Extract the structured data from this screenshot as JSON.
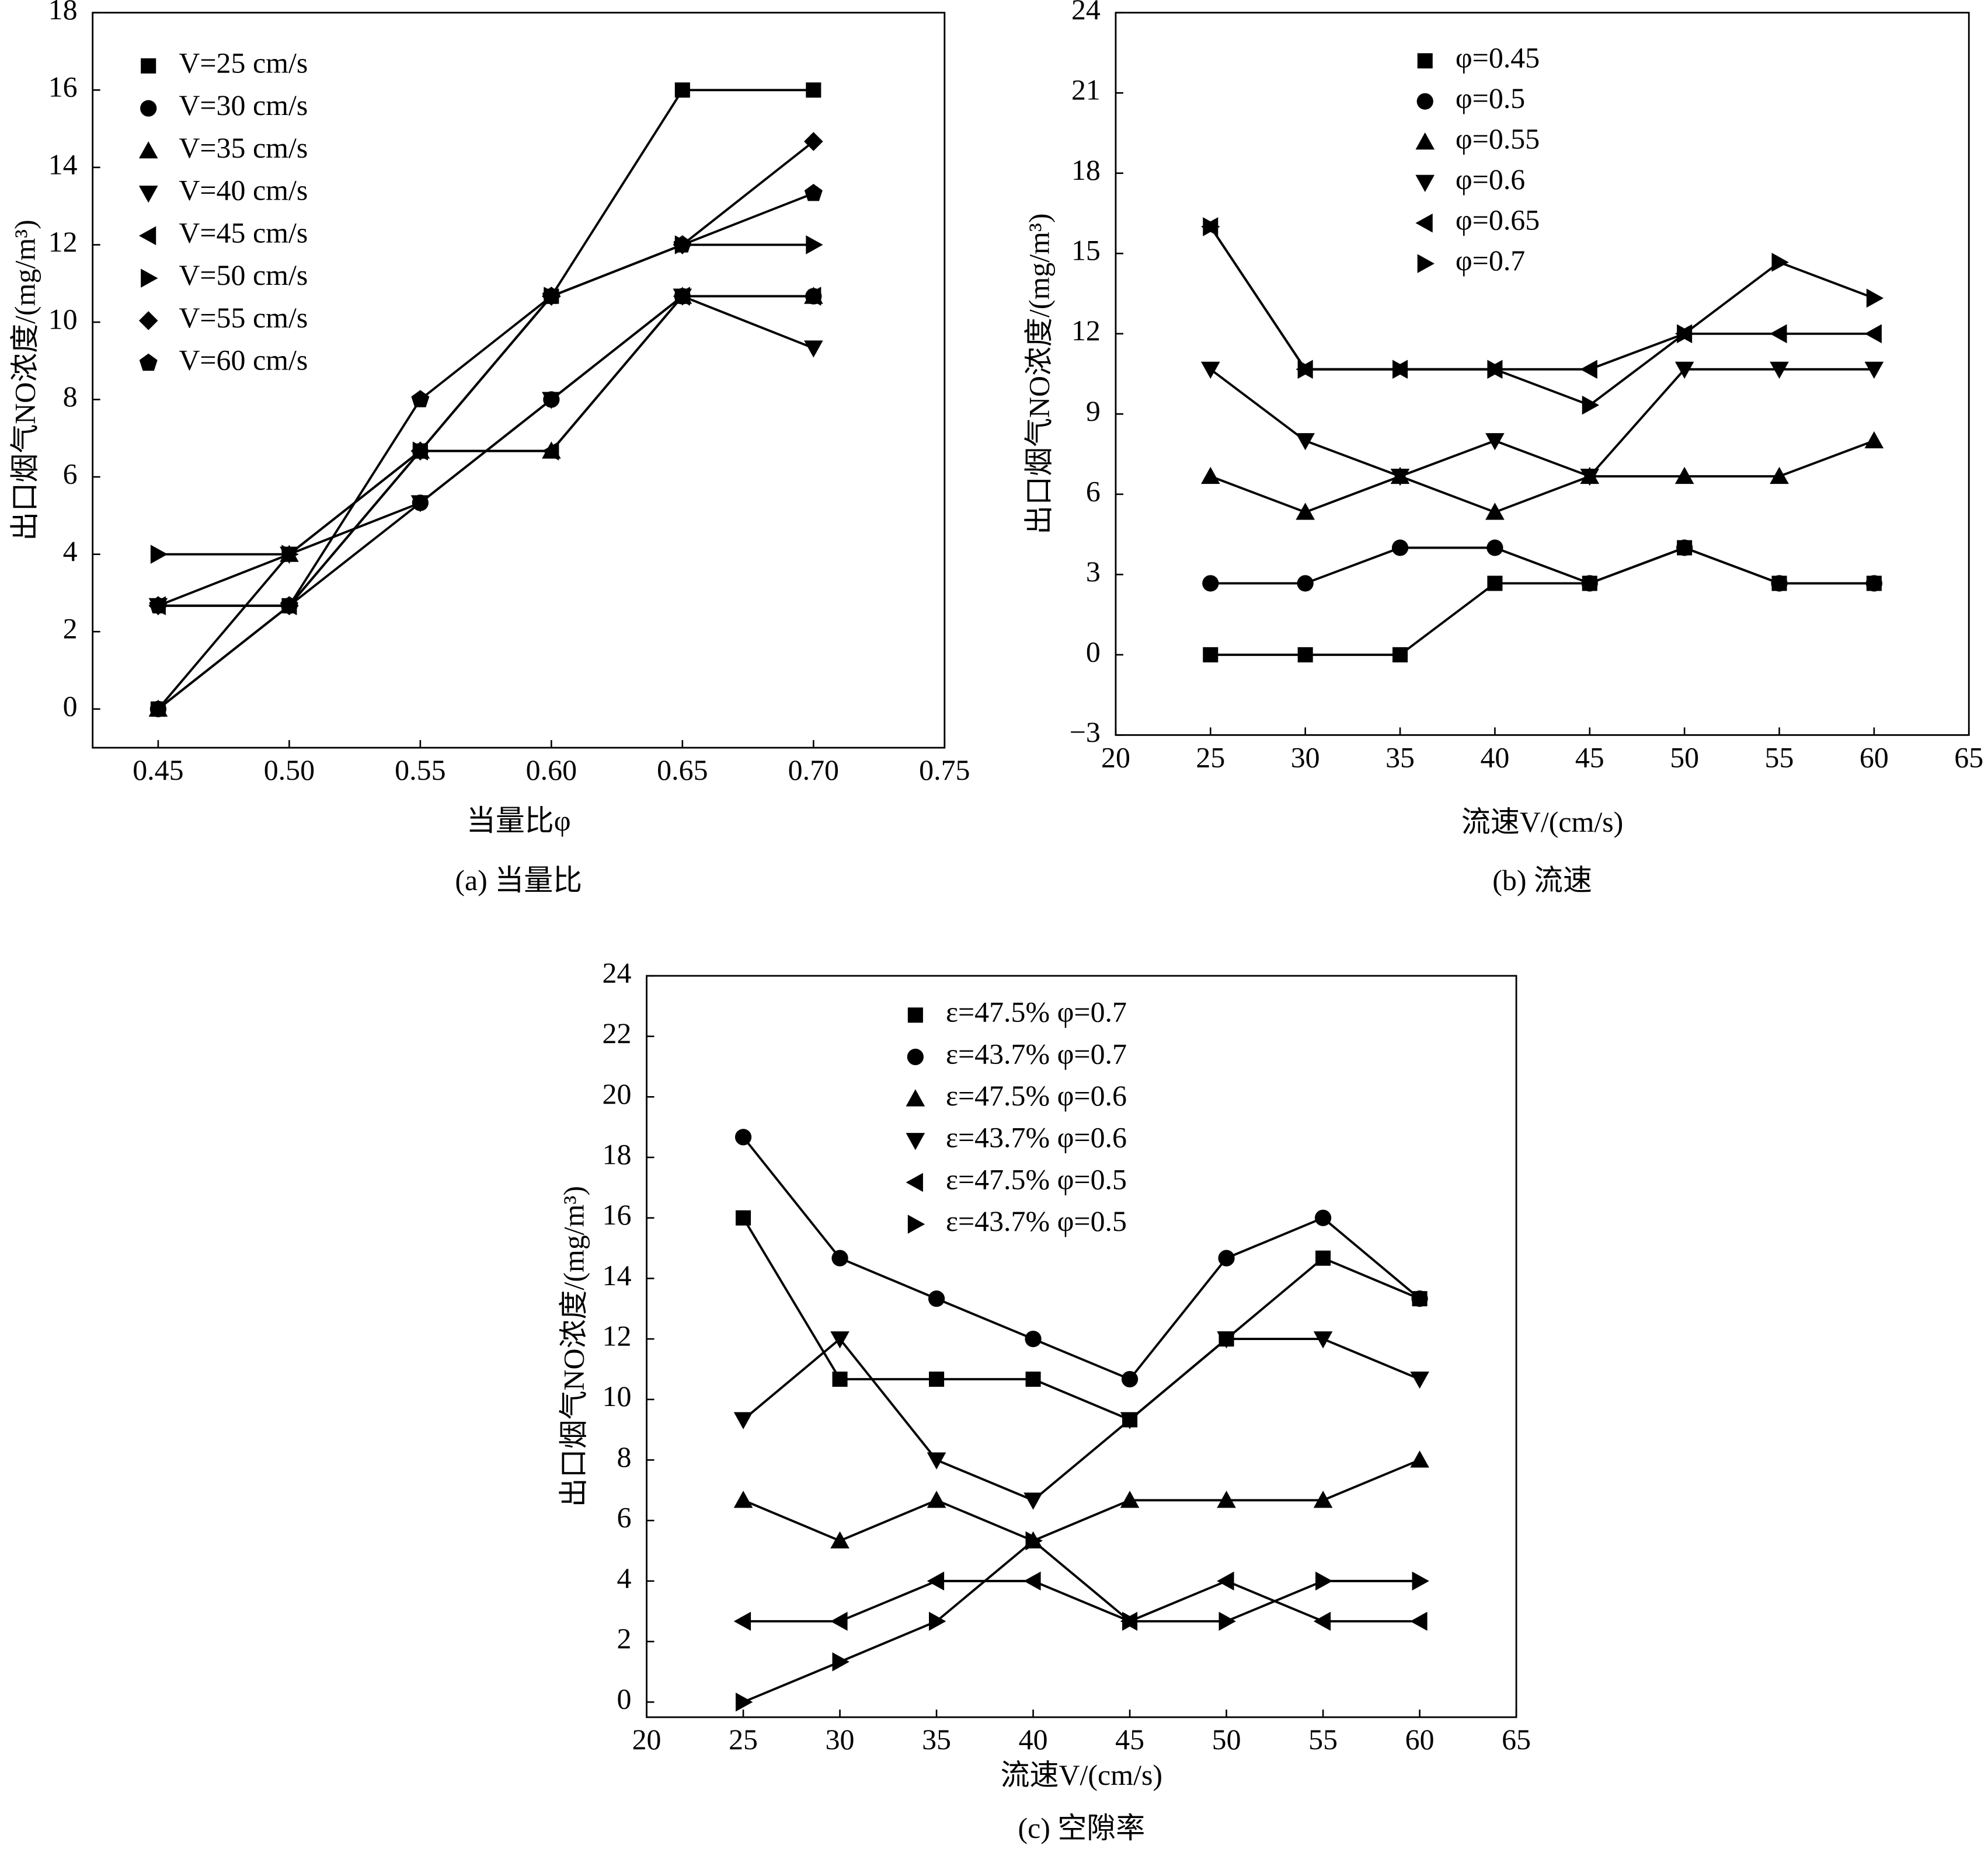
{
  "chart_data": [
    {
      "type": "line",
      "caption": "(a) 当量比",
      "xlabel": "当量比φ",
      "ylabel": "出口烟气NO浓度/(mg/m³)",
      "x": [
        0.45,
        0.5,
        0.55,
        0.6,
        0.65,
        0.7
      ],
      "xlim": [
        0.425,
        0.75
      ],
      "xticks": [
        {
          "value": 0.45,
          "label": "0.45"
        },
        {
          "value": 0.5,
          "label": "0.50"
        },
        {
          "value": 0.55,
          "label": "0.55"
        },
        {
          "value": 0.6,
          "label": "0.60"
        },
        {
          "value": 0.65,
          "label": "0.65"
        },
        {
          "value": 0.7,
          "label": "0.70"
        },
        {
          "value": 0.75,
          "label": "0.75"
        }
      ],
      "ylim": [
        -1,
        18
      ],
      "yticks": [
        0,
        2,
        4,
        6,
        8,
        10,
        12,
        14,
        16,
        18
      ],
      "series": [
        {
          "name": "V=25 cm/s",
          "color": "#000000",
          "marker": "square",
          "values": [
            0,
            2.67,
            6.67,
            10.67,
            16,
            16
          ]
        },
        {
          "name": "V=30 cm/s",
          "color": "#000000",
          "marker": "circle",
          "values": [
            0,
            2.67,
            5.33,
            8,
            10.67,
            10.67
          ]
        },
        {
          "name": "V=35 cm/s",
          "color": "#000000",
          "marker": "up",
          "values": [
            0,
            4,
            6.67,
            6.67,
            10.67,
            10.67
          ]
        },
        {
          "name": "V=40 cm/s",
          "color": "#000000",
          "marker": "down",
          "values": [
            2.67,
            4,
            5.33,
            8,
            10.67,
            9.33
          ]
        },
        {
          "name": "V=45 cm/s",
          "color": "#000000",
          "marker": "left",
          "values": [
            2.67,
            2.67,
            6.67,
            6.67,
            10.67,
            10.67
          ]
        },
        {
          "name": "V=50 cm/s",
          "color": "#000000",
          "marker": "right",
          "values": [
            4,
            4,
            6.67,
            10.67,
            12,
            12
          ]
        },
        {
          "name": "V=55 cm/s",
          "color": "#000000",
          "marker": "diamond",
          "values": [
            2.67,
            2.67,
            6.67,
            10.67,
            12,
            14.67
          ]
        },
        {
          "name": "V=60 cm/s",
          "color": "#000000",
          "marker": "pentagon",
          "values": [
            2.67,
            2.67,
            8,
            10.67,
            12,
            13.33
          ]
        }
      ]
    },
    {
      "type": "line",
      "caption": "(b) 流速",
      "xlabel": "流速V/(cm/s)",
      "ylabel": "出口烟气NO浓度/(mg/m³)",
      "x": [
        25,
        30,
        35,
        40,
        45,
        50,
        55,
        60
      ],
      "xlim": [
        20,
        65
      ],
      "xticks": [
        20,
        25,
        30,
        35,
        40,
        45,
        50,
        55,
        60,
        65
      ],
      "ylim": [
        -3,
        24
      ],
      "yticks": [
        {
          "value": -3,
          "label": "−3"
        },
        0,
        3,
        6,
        9,
        12,
        15,
        18,
        21,
        24
      ],
      "series": [
        {
          "name": "φ=0.45",
          "color": "#000000",
          "marker": "square",
          "values": [
            0,
            0,
            0,
            2.67,
            2.67,
            4,
            2.67,
            2.67
          ]
        },
        {
          "name": "φ=0.5",
          "color": "#000000",
          "marker": "circle",
          "values": [
            2.67,
            2.67,
            4,
            4,
            2.67,
            4,
            2.67,
            2.67
          ]
        },
        {
          "name": "φ=0.55",
          "color": "#000000",
          "marker": "up",
          "values": [
            6.67,
            5.33,
            6.67,
            5.33,
            6.67,
            6.67,
            6.67,
            8
          ]
        },
        {
          "name": "φ=0.6",
          "color": "#000000",
          "marker": "down",
          "values": [
            10.67,
            8,
            6.67,
            8,
            6.67,
            10.67,
            10.67,
            10.67
          ]
        },
        {
          "name": "φ=0.65",
          "color": "#000000",
          "marker": "left",
          "values": [
            16,
            10.67,
            10.67,
            10.67,
            10.67,
            12,
            12,
            12
          ]
        },
        {
          "name": "φ=0.7",
          "color": "#000000",
          "marker": "right",
          "values": [
            16,
            10.67,
            10.67,
            10.67,
            9.33,
            12,
            14.67,
            13.33
          ]
        }
      ]
    },
    {
      "type": "line",
      "caption": "(c) 空隙率",
      "xlabel": "流速V/(cm/s)",
      "ylabel": "出口烟气NO浓度/(mg/m³)",
      "x": [
        25,
        30,
        35,
        40,
        45,
        50,
        55,
        60
      ],
      "xlim": [
        20,
        65
      ],
      "xticks": [
        20,
        25,
        30,
        35,
        40,
        45,
        50,
        55,
        60,
        65
      ],
      "ylim": [
        -0.5,
        24
      ],
      "yticks": [
        0,
        2,
        4,
        6,
        8,
        10,
        12,
        14,
        16,
        18,
        20,
        22,
        24
      ],
      "series": [
        {
          "name": "ε=47.5% φ=0.7",
          "color": "#000000",
          "marker": "square",
          "values": [
            16,
            10.67,
            10.67,
            10.67,
            9.33,
            12,
            14.67,
            13.33
          ]
        },
        {
          "name": "ε=43.7% φ=0.7",
          "color": "#000000",
          "marker": "circle",
          "values": [
            18.67,
            14.67,
            13.33,
            12,
            10.67,
            14.67,
            16,
            13.33
          ]
        },
        {
          "name": "ε=47.5% φ=0.6",
          "color": "#000000",
          "marker": "up",
          "values": [
            6.67,
            5.33,
            6.67,
            5.33,
            6.67,
            6.67,
            6.67,
            8
          ]
        },
        {
          "name": "ε=43.7% φ=0.6",
          "color": "#000000",
          "marker": "down",
          "values": [
            9.33,
            12,
            8,
            6.67,
            9.33,
            12,
            12,
            10.67
          ]
        },
        {
          "name": "ε=47.5% φ=0.5",
          "color": "#000000",
          "marker": "left",
          "values": [
            2.67,
            2.67,
            4,
            4,
            2.67,
            4,
            2.67,
            2.67
          ]
        },
        {
          "name": "ε=43.7% φ=0.5",
          "color": "#000000",
          "marker": "right",
          "values": [
            0,
            1.33,
            2.67,
            5.33,
            2.67,
            2.67,
            4,
            4
          ]
        }
      ]
    }
  ]
}
